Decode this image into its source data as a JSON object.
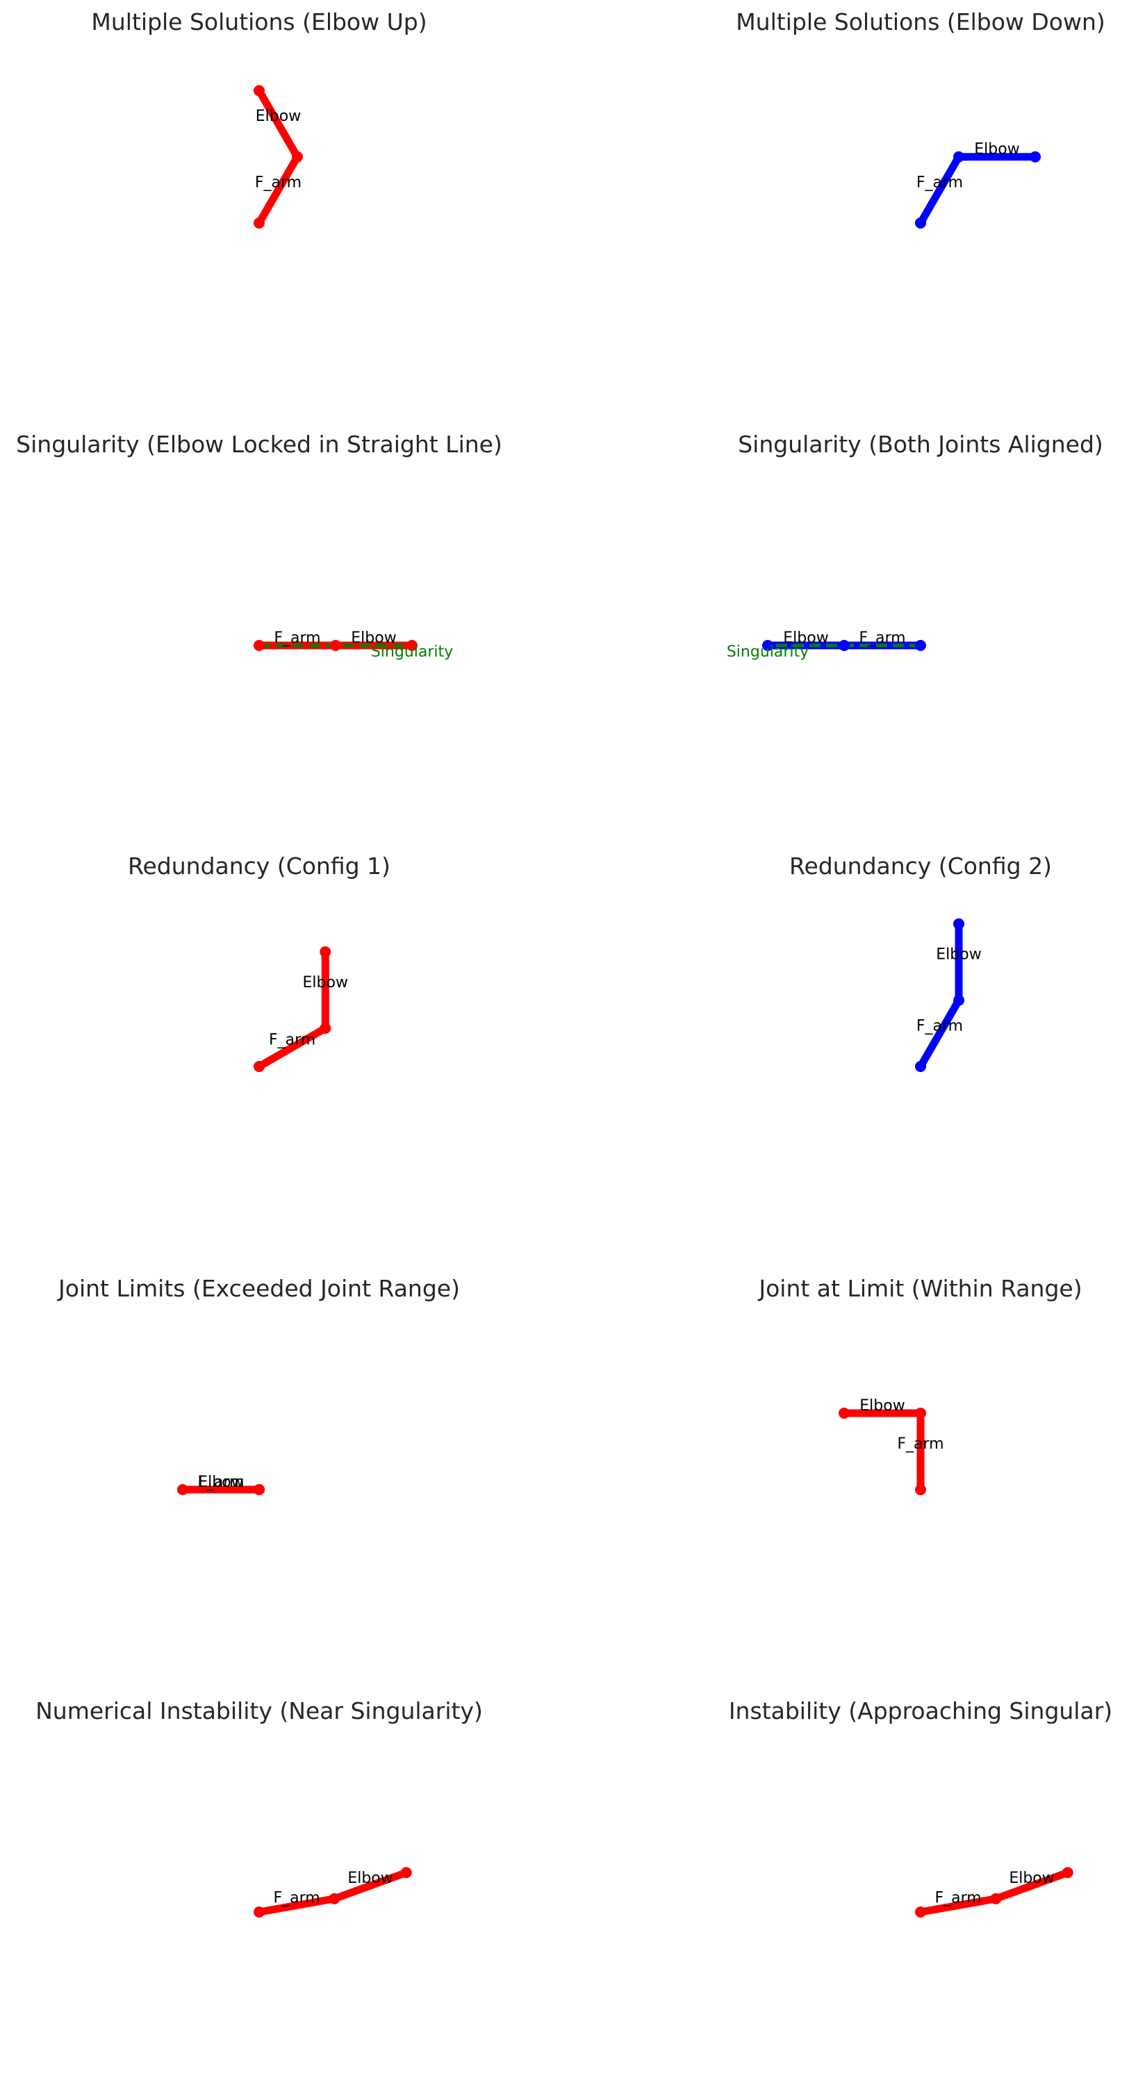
{
  "colors": {
    "red": "#ff0000",
    "blue": "#0000ff",
    "green": "#008000",
    "title": "#262626",
    "label": "#000000"
  },
  "panels": [
    {
      "title": "Multiple Solutions (Elbow Up)",
      "color": "red",
      "points": [
        [
          0,
          0
        ],
        [
          0.5,
          0.866
        ],
        [
          0,
          1.732
        ]
      ],
      "labels": [
        {
          "text": "F_arm",
          "at": [
            0.25,
            0.433
          ]
        },
        {
          "text": "Elbow",
          "at": [
            0.25,
            1.299
          ]
        }
      ]
    },
    {
      "title": "Multiple Solutions (Elbow Down)",
      "color": "blue",
      "points": [
        [
          0,
          0
        ],
        [
          0.5,
          0.866
        ],
        [
          1.5,
          0.866
        ]
      ],
      "labels": [
        {
          "text": "F_arm",
          "at": [
            0.25,
            0.433
          ]
        },
        {
          "text": "Elbow",
          "at": [
            1.0,
            0.866
          ]
        }
      ]
    },
    {
      "title": "Singularity (Elbow Locked in Straight Line)",
      "color": "red",
      "points": [
        [
          0,
          0
        ],
        [
          1,
          0
        ],
        [
          2,
          0
        ]
      ],
      "labels": [
        {
          "text": "F_arm",
          "at": [
            0.5,
            0
          ]
        },
        {
          "text": "Elbow",
          "at": [
            1.5,
            0
          ]
        }
      ],
      "singularity": {
        "label": "Singularity",
        "line": [
          [
            0,
            0
          ],
          [
            2,
            0
          ]
        ],
        "label_at": [
          2,
          0
        ]
      }
    },
    {
      "title": "Singularity (Both Joints Aligned)",
      "color": "blue",
      "points": [
        [
          0,
          0
        ],
        [
          -1,
          0
        ],
        [
          -2,
          0
        ]
      ],
      "labels": [
        {
          "text": "F_arm",
          "at": [
            -0.5,
            0
          ]
        },
        {
          "text": "Elbow",
          "at": [
            -1.5,
            0
          ]
        }
      ],
      "singularity": {
        "label": "Singularity",
        "line": [
          [
            0,
            0
          ],
          [
            -2,
            0
          ]
        ],
        "label_at": [
          -2,
          0
        ]
      }
    },
    {
      "title": "Redundancy (Config 1)",
      "color": "red",
      "points": [
        [
          0,
          0
        ],
        [
          0.866,
          0.5
        ],
        [
          0.866,
          1.5
        ]
      ],
      "labels": [
        {
          "text": "F_arm",
          "at": [
            0.433,
            0.25
          ]
        },
        {
          "text": "Elbow",
          "at": [
            0.866,
            1.0
          ]
        }
      ]
    },
    {
      "title": "Redundancy (Config 2)",
      "color": "blue",
      "points": [
        [
          0,
          0
        ],
        [
          0.5,
          0.866
        ],
        [
          0.5,
          1.866
        ]
      ],
      "labels": [
        {
          "text": "F_arm",
          "at": [
            0.25,
            0.433
          ]
        },
        {
          "text": "Elbow",
          "at": [
            0.5,
            1.366
          ]
        }
      ]
    },
    {
      "title": "Joint Limits (Exceeded Joint Range)",
      "color": "red",
      "points": [
        [
          0,
          0
        ],
        [
          -1,
          0
        ],
        [
          0,
          0
        ]
      ],
      "labels": [
        {
          "text": "F_arm",
          "at": [
            -0.5,
            0
          ]
        },
        {
          "text": "Elbow",
          "at": [
            -0.5,
            0
          ]
        }
      ]
    },
    {
      "title": "Joint at Limit (Within Range)",
      "color": "red",
      "points": [
        [
          0,
          0
        ],
        [
          0,
          1
        ],
        [
          -1,
          1
        ]
      ],
      "labels": [
        {
          "text": "F_arm",
          "at": [
            0,
            0.5
          ]
        },
        {
          "text": "Elbow",
          "at": [
            -0.5,
            1
          ]
        }
      ]
    },
    {
      "title": "Numerical Instability (Near Singularity)",
      "color": "red",
      "points": [
        [
          0,
          0
        ],
        [
          0.985,
          0.174
        ],
        [
          1.925,
          0.516
        ]
      ],
      "labels": [
        {
          "text": "F_arm",
          "at": [
            0.492,
            0.087
          ]
        },
        {
          "text": "Elbow",
          "at": [
            1.455,
            0.345
          ]
        }
      ]
    },
    {
      "title": "Instability (Approaching Singular)",
      "color": "red",
      "points": [
        [
          0,
          0
        ],
        [
          0.985,
          0.174
        ],
        [
          1.925,
          0.516
        ]
      ],
      "labels": [
        {
          "text": "F_arm",
          "at": [
            0.492,
            0.087
          ]
        },
        {
          "text": "Elbow",
          "at": [
            1.455,
            0.345
          ]
        }
      ]
    }
  ]
}
